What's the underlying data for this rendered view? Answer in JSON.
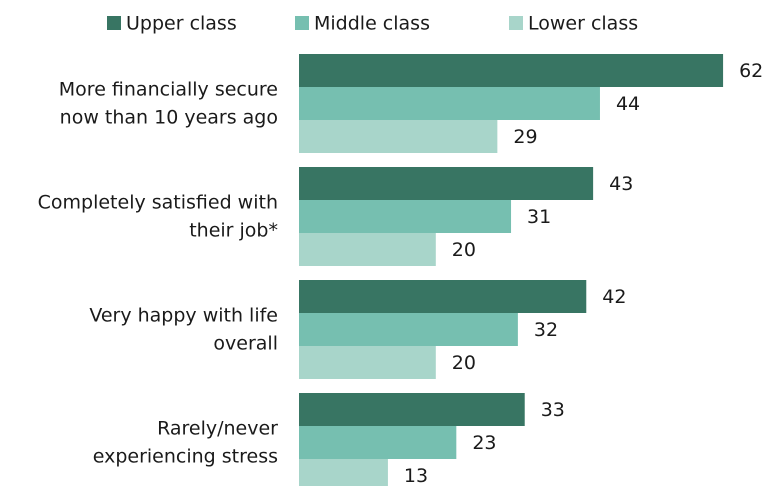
{
  "chart_data": {
    "type": "bar",
    "orientation": "horizontal",
    "categories": [
      "More financially secure\nnow than 10 years ago",
      "Completely satisfied with\ntheir job*",
      "Very happy with life\noverall",
      "Rarely/never\nexperiencing stress"
    ],
    "series": [
      {
        "name": "Upper class",
        "color": "#387563",
        "values": [
          62,
          43,
          42,
          33
        ]
      },
      {
        "name": "Middle class",
        "color": "#76bfb0",
        "values": [
          44,
          31,
          32,
          23
        ]
      },
      {
        "name": "Lower class",
        "color": "#a8d5ca",
        "values": [
          29,
          20,
          20,
          13
        ]
      }
    ],
    "legend": "top"
  }
}
